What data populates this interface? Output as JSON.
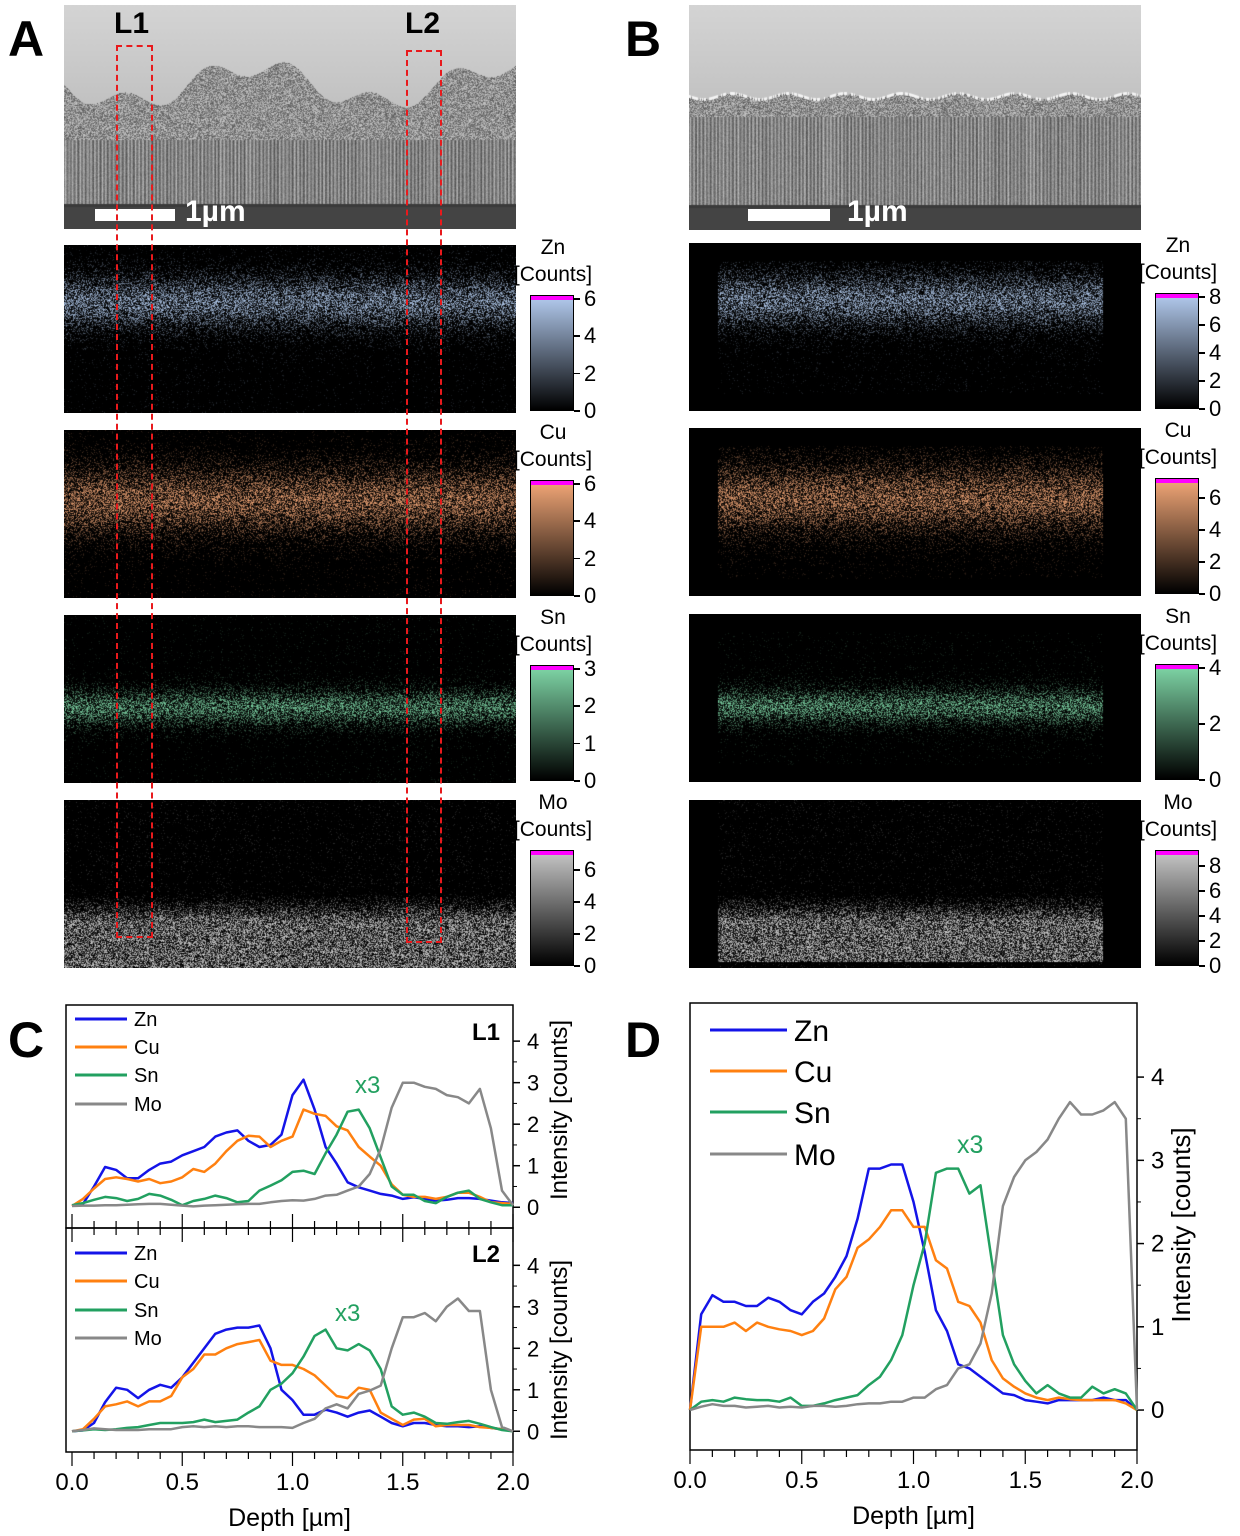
{
  "panels": {
    "A": {
      "letter": "A",
      "scale_label": "1µm",
      "roi_labels": [
        "L1",
        "L2"
      ]
    },
    "B": {
      "letter": "B",
      "scale_label": "1µm"
    },
    "C": {
      "letter": "C"
    },
    "D": {
      "letter": "D"
    }
  },
  "colorbars": {
    "unit": "[Counts]",
    "A": [
      {
        "element": "Zn",
        "ticks": [
          0,
          2,
          4,
          6
        ],
        "max": 6,
        "color": "#b4ccf0"
      },
      {
        "element": "Cu",
        "ticks": [
          0,
          2,
          4,
          6
        ],
        "max": 6,
        "color": "#f4a878"
      },
      {
        "element": "Sn",
        "ticks": [
          0,
          1,
          2,
          3
        ],
        "max": 3,
        "color": "#80d8a8"
      },
      {
        "element": "Mo",
        "ticks": [
          0,
          2,
          4,
          6
        ],
        "max": 7,
        "color": "#c8c8c8"
      }
    ],
    "B": [
      {
        "element": "Zn",
        "ticks": [
          0,
          2,
          4,
          6,
          8
        ],
        "max": 8,
        "color": "#b4ccf0"
      },
      {
        "element": "Cu",
        "ticks": [
          0,
          2,
          4,
          6
        ],
        "max": 7,
        "color": "#f4a878"
      },
      {
        "element": "Sn",
        "ticks": [
          0,
          2,
          4
        ],
        "max": 4,
        "color": "#80d8a8"
      },
      {
        "element": "Mo",
        "ticks": [
          0,
          2,
          4,
          6,
          8
        ],
        "max": 9,
        "color": "#c8c8c8"
      }
    ],
    "limit_color": "#ff00ff"
  },
  "chart_data": [
    {
      "panel": "C",
      "id": "L1",
      "type": "line",
      "label": "L1",
      "annotation": "x3",
      "xlabel": "",
      "ylabel": "Intensity [counts]",
      "xlim": [
        0,
        2.0
      ],
      "ylim": [
        -0.5,
        4.87
      ],
      "yticks": [
        0,
        1,
        2,
        3,
        4
      ],
      "xticks": [
        0.0,
        0.5,
        1.0,
        1.5,
        2.0
      ],
      "grid": false,
      "legend": "top-left",
      "x": [
        0,
        0.05,
        0.1,
        0.15,
        0.2,
        0.25,
        0.3,
        0.35,
        0.4,
        0.45,
        0.5,
        0.55,
        0.6,
        0.65,
        0.7,
        0.75,
        0.8,
        0.85,
        0.9,
        0.95,
        1.0,
        1.05,
        1.1,
        1.15,
        1.2,
        1.25,
        1.3,
        1.35,
        1.4,
        1.45,
        1.5,
        1.55,
        1.6,
        1.65,
        1.7,
        1.75,
        1.8,
        1.85,
        1.9,
        1.95,
        2.0
      ],
      "series": [
        {
          "name": "Zn",
          "color": "#1414e8",
          "values": [
            0.04,
            0.08,
            0.5,
            0.97,
            0.9,
            0.7,
            0.7,
            0.9,
            1.05,
            1.1,
            1.25,
            1.35,
            1.45,
            1.7,
            1.8,
            1.85,
            1.6,
            1.45,
            1.5,
            1.75,
            2.7,
            3.07,
            2.35,
            1.45,
            1.05,
            0.6,
            0.48,
            0.4,
            0.32,
            0.28,
            0.2,
            0.24,
            0.2,
            0.16,
            0.18,
            0.22,
            0.22,
            0.2,
            0.16,
            0.12,
            0.1
          ]
        },
        {
          "name": "Cu",
          "color": "#ff8010",
          "values": [
            0.03,
            0.2,
            0.45,
            0.68,
            0.72,
            0.68,
            0.62,
            0.68,
            0.58,
            0.62,
            0.72,
            0.92,
            0.85,
            1.05,
            1.35,
            1.6,
            1.72,
            1.7,
            1.45,
            1.6,
            1.7,
            2.35,
            2.25,
            2.2,
            1.95,
            1.85,
            1.45,
            1.22,
            1.0,
            0.55,
            0.3,
            0.25,
            0.25,
            0.2,
            0.25,
            0.35,
            0.35,
            0.25,
            0.12,
            0.1,
            0.08
          ]
        },
        {
          "name": "Sn",
          "color": "#22a060",
          "values": [
            0.05,
            0.1,
            0.18,
            0.25,
            0.22,
            0.15,
            0.2,
            0.32,
            0.28,
            0.18,
            0.05,
            0.15,
            0.2,
            0.28,
            0.22,
            0.12,
            0.15,
            0.4,
            0.52,
            0.65,
            0.85,
            0.88,
            0.8,
            1.3,
            1.75,
            2.3,
            2.35,
            1.9,
            1.2,
            0.5,
            0.3,
            0.3,
            0.15,
            0.1,
            0.25,
            0.35,
            0.4,
            0.2,
            0.12,
            0.05,
            0.05
          ]
        },
        {
          "name": "Mo",
          "color": "#888888",
          "values": [
            0.03,
            0.04,
            0.04,
            0.05,
            0.05,
            0.06,
            0.07,
            0.08,
            0.08,
            0.06,
            0.04,
            0.02,
            0.04,
            0.05,
            0.06,
            0.07,
            0.08,
            0.08,
            0.12,
            0.15,
            0.17,
            0.16,
            0.2,
            0.28,
            0.3,
            0.4,
            0.5,
            0.8,
            1.4,
            2.4,
            3.0,
            3.0,
            2.9,
            2.85,
            2.7,
            2.65,
            2.5,
            2.85,
            1.9,
            0.4,
            0.05
          ]
        }
      ]
    },
    {
      "panel": "C",
      "id": "L2",
      "type": "line",
      "label": "L2",
      "annotation": "x3",
      "xlabel": "Depth [µm]",
      "ylabel": "Intensity [counts]",
      "xlim": [
        0,
        2.0
      ],
      "ylim": [
        -0.5,
        4.9
      ],
      "yticks": [
        0,
        1,
        2,
        3,
        4
      ],
      "xticks": [
        0.0,
        0.5,
        1.0,
        1.5,
        2.0
      ],
      "xticklabels": [
        "0.0",
        "0.5",
        "1.0",
        "1.5",
        "2.0"
      ],
      "grid": false,
      "legend": "top-left",
      "x": [
        0,
        0.05,
        0.1,
        0.15,
        0.2,
        0.25,
        0.3,
        0.35,
        0.4,
        0.45,
        0.5,
        0.55,
        0.6,
        0.65,
        0.7,
        0.75,
        0.8,
        0.85,
        0.9,
        0.95,
        1.0,
        1.05,
        1.1,
        1.15,
        1.2,
        1.25,
        1.3,
        1.35,
        1.4,
        1.45,
        1.5,
        1.55,
        1.6,
        1.65,
        1.7,
        1.75,
        1.8,
        1.85,
        1.9,
        1.95,
        2.0
      ],
      "series": [
        {
          "name": "Zn",
          "color": "#1414e8",
          "values": [
            0,
            0.02,
            0.2,
            0.7,
            1.05,
            1.0,
            0.8,
            1.0,
            1.12,
            1.05,
            1.3,
            1.65,
            2.0,
            2.35,
            2.45,
            2.5,
            2.5,
            2.55,
            2.0,
            1.0,
            0.75,
            0.4,
            0.4,
            0.52,
            0.45,
            0.35,
            0.45,
            0.5,
            0.35,
            0.2,
            0.12,
            0.2,
            0.2,
            0.15,
            0.12,
            0.12,
            0.1,
            0.12,
            0.08,
            0.05,
            0
          ]
        },
        {
          "name": "Cu",
          "color": "#ff8010",
          "values": [
            0,
            0.05,
            0.3,
            0.6,
            0.65,
            0.72,
            0.6,
            0.72,
            0.72,
            0.85,
            1.3,
            1.5,
            1.85,
            1.85,
            2.0,
            2.1,
            2.15,
            2.2,
            1.7,
            1.6,
            1.6,
            1.5,
            1.35,
            1.1,
            0.85,
            0.8,
            1.05,
            1.0,
            0.45,
            0.3,
            0.15,
            0.28,
            0.3,
            0.12,
            0.15,
            0.15,
            0.15,
            0.1,
            0.08,
            0.05,
            0
          ]
        },
        {
          "name": "Sn",
          "color": "#22a060",
          "values": [
            0,
            0.02,
            0.05,
            0.03,
            0.05,
            0.08,
            0.1,
            0.15,
            0.2,
            0.2,
            0.2,
            0.22,
            0.28,
            0.22,
            0.25,
            0.28,
            0.45,
            0.6,
            1.0,
            1.15,
            1.4,
            1.8,
            2.3,
            2.45,
            2.0,
            1.95,
            2.1,
            1.95,
            1.5,
            0.6,
            0.4,
            0.45,
            0.35,
            0.2,
            0.18,
            0.22,
            0.25,
            0.18,
            0.1,
            0.03,
            0
          ]
        },
        {
          "name": "Mo",
          "color": "#888888",
          "values": [
            0,
            0.03,
            0.07,
            0.05,
            0.03,
            0.03,
            0.03,
            0.05,
            0.05,
            0.05,
            0.1,
            0.12,
            0.1,
            0.12,
            0.1,
            0.12,
            0.12,
            0.1,
            0.1,
            0.1,
            0.08,
            0.2,
            0.3,
            0.55,
            0.65,
            0.55,
            0.9,
            0.98,
            1.1,
            2.0,
            2.75,
            2.75,
            2.85,
            2.65,
            3.0,
            3.2,
            2.9,
            2.9,
            1.0,
            0.1,
            0
          ]
        }
      ]
    },
    {
      "panel": "D",
      "type": "line",
      "annotation": "x3",
      "xlabel": "Depth [µm]",
      "ylabel": "Intensity [counts]",
      "xlim": [
        0,
        2.0
      ],
      "ylim": [
        -0.48,
        4.89
      ],
      "yticks": [
        0,
        1,
        2,
        3,
        4
      ],
      "xticks": [
        0.0,
        0.5,
        1.0,
        1.5,
        2.0
      ],
      "xticklabels": [
        "0.0",
        "0.5",
        "1.0",
        "1.5",
        "2.0"
      ],
      "grid": false,
      "legend": "top-left",
      "x": [
        0,
        0.05,
        0.1,
        0.15,
        0.2,
        0.25,
        0.3,
        0.35,
        0.4,
        0.45,
        0.5,
        0.55,
        0.6,
        0.65,
        0.7,
        0.75,
        0.8,
        0.85,
        0.9,
        0.95,
        1.0,
        1.05,
        1.1,
        1.15,
        1.2,
        1.25,
        1.3,
        1.35,
        1.4,
        1.45,
        1.5,
        1.55,
        1.6,
        1.65,
        1.7,
        1.75,
        1.8,
        1.85,
        1.9,
        1.95,
        2.0
      ],
      "series": [
        {
          "name": "Zn",
          "color": "#1414e8",
          "values": [
            0,
            1.15,
            1.38,
            1.3,
            1.3,
            1.25,
            1.25,
            1.35,
            1.3,
            1.2,
            1.15,
            1.3,
            1.4,
            1.6,
            1.85,
            2.3,
            2.9,
            2.9,
            2.95,
            2.95,
            2.5,
            1.9,
            1.2,
            0.95,
            0.55,
            0.5,
            0.4,
            0.3,
            0.2,
            0.18,
            0.12,
            0.1,
            0.08,
            0.12,
            0.12,
            0.12,
            0.12,
            0.15,
            0.12,
            0.12,
            0
          ]
        },
        {
          "name": "Cu",
          "color": "#ff8010",
          "values": [
            0,
            1.0,
            1.0,
            1.0,
            1.05,
            0.95,
            1.05,
            1.0,
            0.97,
            0.95,
            0.9,
            0.95,
            1.1,
            1.45,
            1.6,
            1.95,
            2.05,
            2.2,
            2.4,
            2.4,
            2.2,
            2.2,
            1.8,
            1.7,
            1.3,
            1.25,
            1.05,
            0.6,
            0.38,
            0.28,
            0.2,
            0.15,
            0.12,
            0.15,
            0.13,
            0.12,
            0.12,
            0.12,
            0.12,
            0.08,
            0
          ]
        },
        {
          "name": "Sn",
          "color": "#22a060",
          "values": [
            0,
            0.1,
            0.12,
            0.1,
            0.15,
            0.13,
            0.12,
            0.12,
            0.1,
            0.15,
            0.05,
            0.05,
            0.08,
            0.12,
            0.15,
            0.18,
            0.3,
            0.4,
            0.6,
            0.9,
            1.5,
            2.0,
            2.85,
            2.9,
            2.9,
            2.6,
            2.7,
            1.8,
            0.9,
            0.55,
            0.35,
            0.2,
            0.3,
            0.2,
            0.15,
            0.15,
            0.28,
            0.2,
            0.25,
            0.2,
            0
          ]
        },
        {
          "name": "Mo",
          "color": "#888888",
          "values": [
            0,
            0.04,
            0.07,
            0.05,
            0.05,
            0.03,
            0.04,
            0.05,
            0.03,
            0.04,
            0.03,
            0.05,
            0.05,
            0.04,
            0.05,
            0.07,
            0.08,
            0.08,
            0.1,
            0.1,
            0.15,
            0.15,
            0.25,
            0.3,
            0.5,
            0.55,
            0.8,
            1.4,
            2.45,
            2.8,
            3.0,
            3.1,
            3.25,
            3.5,
            3.7,
            3.55,
            3.55,
            3.6,
            3.7,
            3.5,
            0
          ]
        }
      ]
    }
  ]
}
